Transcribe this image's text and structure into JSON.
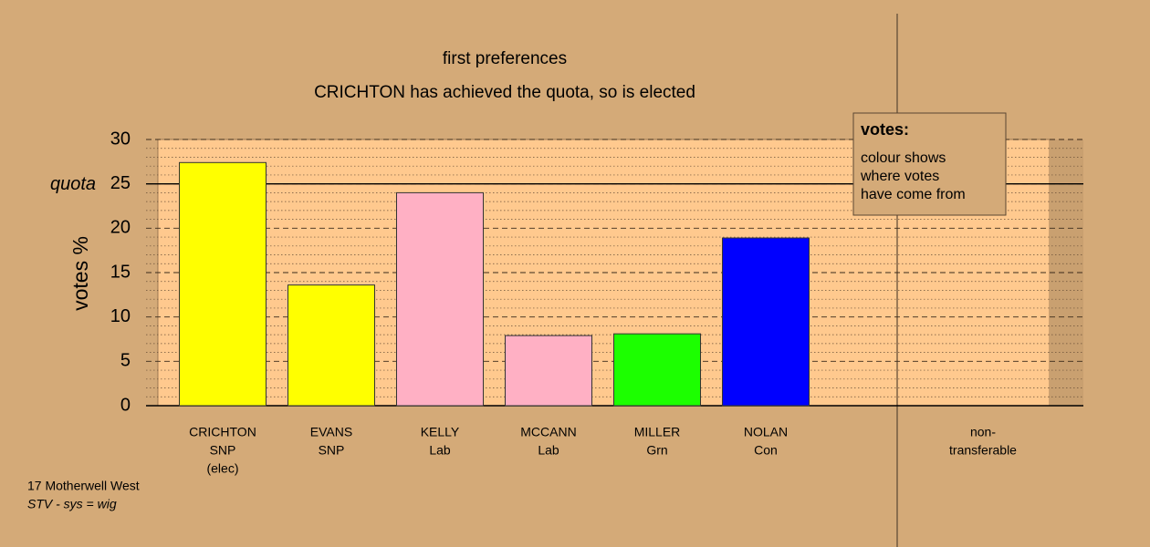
{
  "chart_data": {
    "type": "bar",
    "title": "first preferences",
    "subtitle": "CRICHTON has achieved the quota, so is elected",
    "y_label": "votes %",
    "categories": [
      [
        "CRICHTON",
        "SNP",
        "(elec)"
      ],
      [
        "EVANS",
        "SNP"
      ],
      [
        "KELLY",
        "Lab"
      ],
      [
        "MCCANN",
        "Lab"
      ],
      [
        "MILLER",
        "Grn"
      ],
      [
        "NOLAN",
        "Con"
      ],
      null,
      [
        "non-",
        "transferable"
      ]
    ],
    "values": [
      27.4,
      13.6,
      24.0,
      7.9,
      8.1,
      18.9,
      null,
      0
    ],
    "colors": [
      "#ffff00",
      "#ffff00",
      "#ffb0c4",
      "#ffb0c4",
      "#1cff00",
      "#0000ff",
      null,
      "#d4aa78"
    ],
    "ylim": [
      0,
      30
    ],
    "yticks": [
      0,
      5,
      10,
      15,
      20,
      25,
      30
    ],
    "minor_yticks": [
      1,
      2,
      3,
      4,
      6,
      7,
      8,
      9,
      11,
      12,
      13,
      14,
      16,
      17,
      18,
      19,
      21,
      22,
      23,
      24,
      26,
      27,
      28,
      29
    ],
    "quota": 25,
    "quota_label": "quota",
    "legend": {
      "title": "votes:",
      "lines": [
        "colour shows",
        "where votes",
        "have come from"
      ]
    },
    "footer": [
      "17 Motherwell West",
      "STV - sys = wig"
    ]
  }
}
